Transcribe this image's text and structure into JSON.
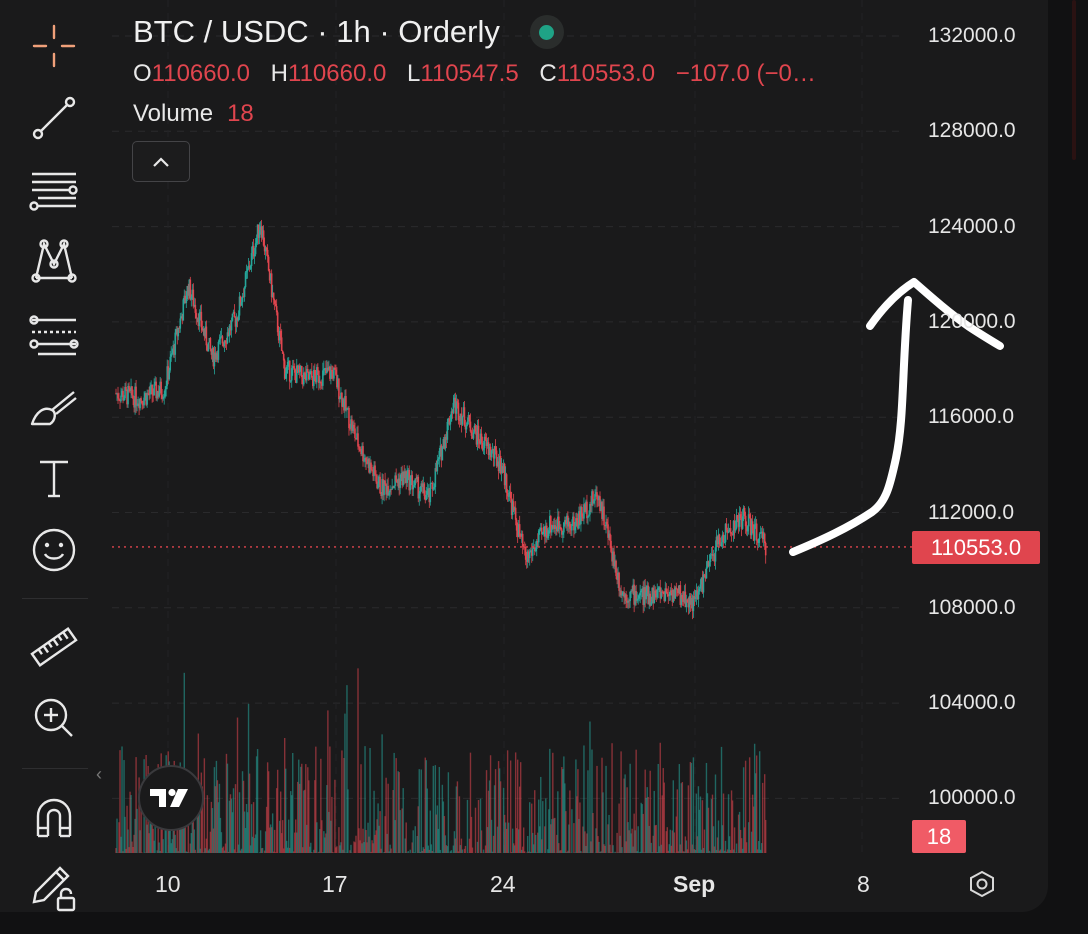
{
  "header": {
    "symbol": "BTC / USDC · 1h · Orderly",
    "ohlc": {
      "o_label": "O",
      "o_value": "110660.0",
      "h_label": "H",
      "h_value": "110660.0",
      "l_label": "L",
      "l_value": "110547.5",
      "c_label": "C",
      "c_value": "110553.0",
      "change": "−107.0 (−0…"
    },
    "volume_label": "Volume",
    "volume_value": "18"
  },
  "price_axis": {
    "ticks": [
      "132000.0",
      "128000.0",
      "124000.0",
      "120000.0",
      "116000.0",
      "112000.0",
      "108000.0",
      "104000.0",
      "100000.0"
    ],
    "last_price": "110553.0",
    "volume_tag": "18"
  },
  "time_axis": {
    "ticks": [
      "10",
      "17",
      "24",
      "Sep",
      "8"
    ]
  },
  "colors": {
    "up": "#26a69a",
    "down": "#e0454e",
    "background": "#1a1a1b",
    "annotation": "#ffffff"
  },
  "toolbar": {
    "tools": [
      "crosshair-icon",
      "trendline-icon",
      "fib-retracement-icon",
      "pattern-icon",
      "projection-icon",
      "brush-icon",
      "text-icon",
      "emoji-icon",
      "ruler-icon",
      "zoom-in-icon",
      "magnet-icon",
      "lock-drawing-icon"
    ]
  },
  "chart_data": {
    "type": "candlestick",
    "interval": "1h",
    "x_ticks": [
      "10",
      "17",
      "24",
      "Sep",
      "8"
    ],
    "ylim": [
      98000,
      132000
    ],
    "last_price": 110553.0,
    "price_path_approx": [
      {
        "x": "Aug 8",
        "y": 117000
      },
      {
        "x": "Aug 9",
        "y": 116800
      },
      {
        "x": "Aug 10",
        "y": 117200
      },
      {
        "x": "Aug 11",
        "y": 121500
      },
      {
        "x": "Aug 12",
        "y": 118500
      },
      {
        "x": "Aug 13",
        "y": 120200
      },
      {
        "x": "Aug 14",
        "y": 124200
      },
      {
        "x": "Aug 15",
        "y": 118000
      },
      {
        "x": "Aug 16",
        "y": 117600
      },
      {
        "x": "Aug 17",
        "y": 117900
      },
      {
        "x": "Aug 18",
        "y": 115000
      },
      {
        "x": "Aug 19",
        "y": 113000
      },
      {
        "x": "Aug 20",
        "y": 113500
      },
      {
        "x": "Aug 21",
        "y": 112600
      },
      {
        "x": "Aug 22",
        "y": 116600
      },
      {
        "x": "Aug 23",
        "y": 115200
      },
      {
        "x": "Aug 24",
        "y": 114000
      },
      {
        "x": "Aug 25",
        "y": 110000
      },
      {
        "x": "Aug 26",
        "y": 111500
      },
      {
        "x": "Aug 27",
        "y": 111500
      },
      {
        "x": "Aug 28",
        "y": 112800
      },
      {
        "x": "Aug 29",
        "y": 108600
      },
      {
        "x": "Aug 30",
        "y": 108500
      },
      {
        "x": "Aug 31",
        "y": 108700
      },
      {
        "x": "Sep 1",
        "y": 108200
      },
      {
        "x": "Sep 2",
        "y": 110800
      },
      {
        "x": "Sep 3",
        "y": 111800
      },
      {
        "x": "Sep 4",
        "y": 110553
      }
    ]
  }
}
